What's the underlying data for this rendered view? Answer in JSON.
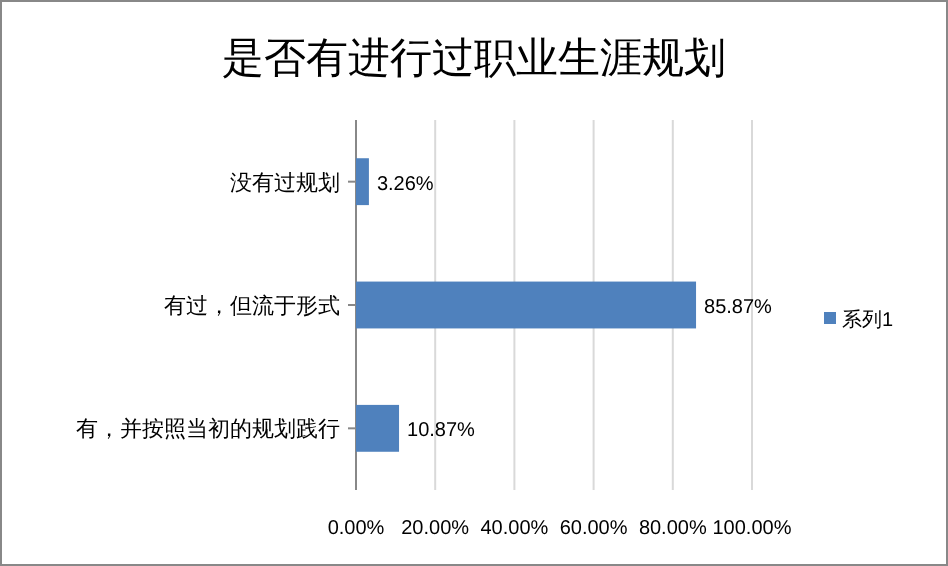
{
  "chart_data": {
    "type": "bar",
    "orientation": "horizontal",
    "title": "是否有进行过职业生涯规划",
    "categories": [
      "没有过规划",
      "有过，但流于形式",
      "有，并按照当初的规划践行"
    ],
    "series": [
      {
        "name": "系列1",
        "color": "#4f81bd",
        "values": [
          3.26,
          85.87,
          10.87
        ],
        "value_labels": [
          "3.26%",
          "85.87%",
          "10.87%"
        ]
      }
    ],
    "xlim": [
      0,
      100
    ],
    "xticks": [
      {
        "value": 0,
        "label": "0.00%"
      },
      {
        "value": 20,
        "label": "20.00%"
      },
      {
        "value": 40,
        "label": "40.00%"
      },
      {
        "value": 60,
        "label": "60.00%"
      },
      {
        "value": 80,
        "label": "80.00%"
      },
      {
        "value": 100,
        "label": "100.00%"
      }
    ],
    "grid": "x",
    "legend": "right"
  }
}
